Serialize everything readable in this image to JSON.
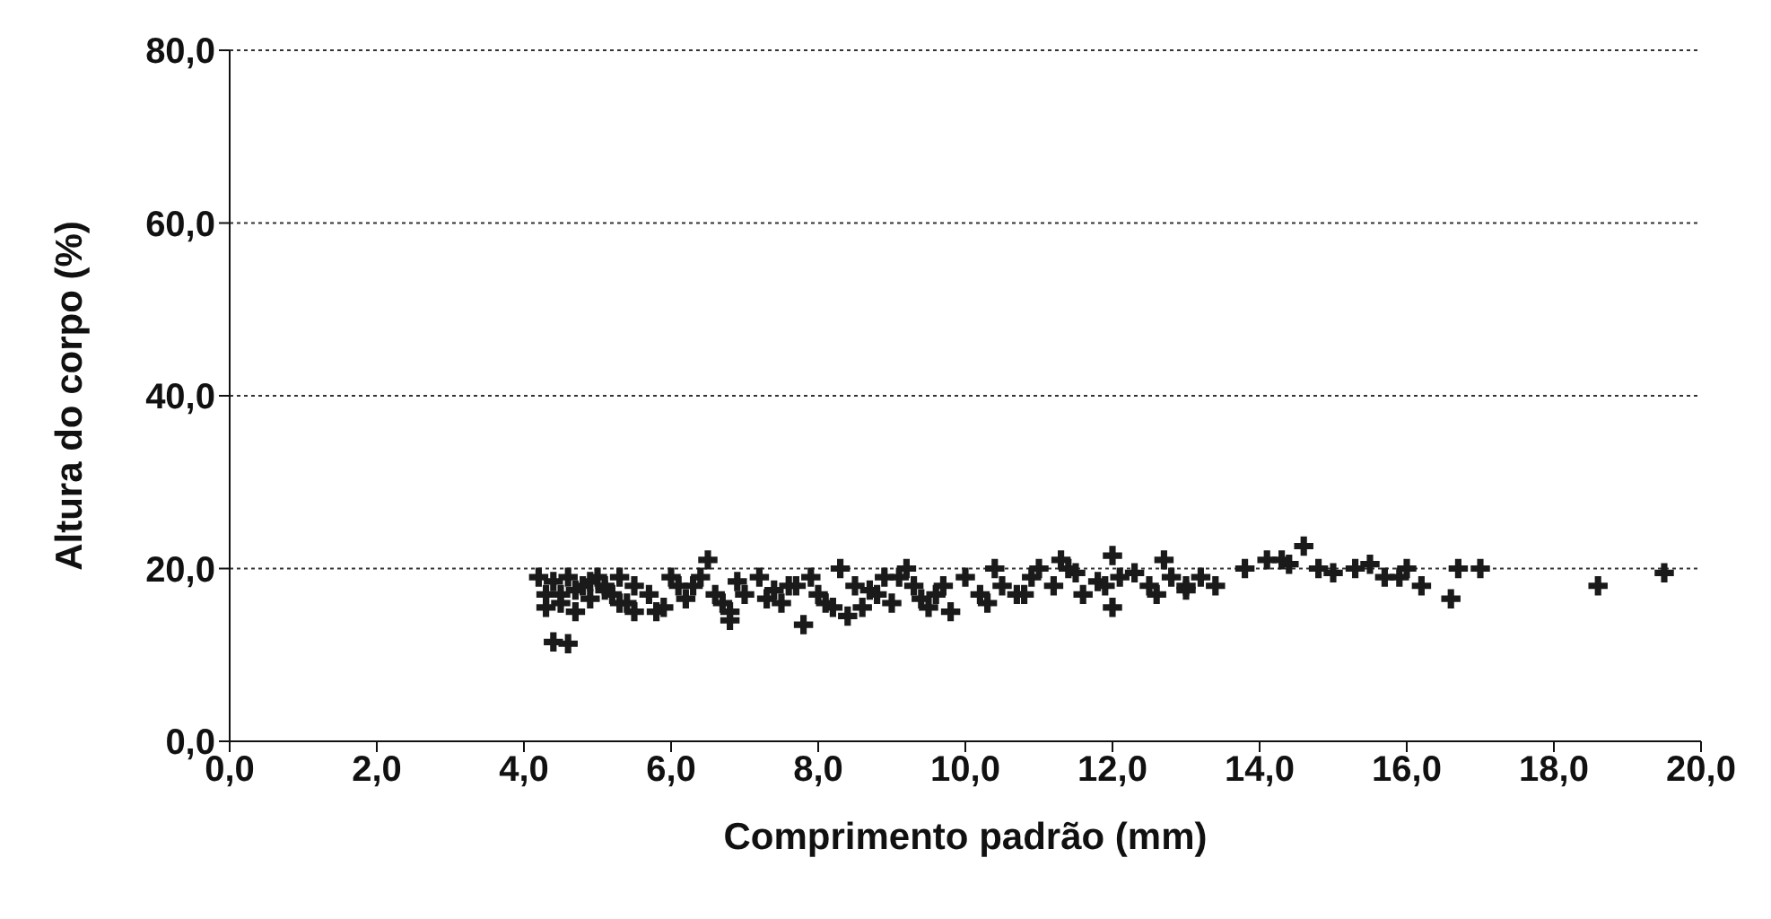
{
  "chart_data": {
    "type": "scatter",
    "xlabel": "Comprimento padrão (mm)",
    "ylabel": "Altura do corpo (%)",
    "xlim": [
      0,
      20
    ],
    "ylim": [
      0,
      80
    ],
    "xticks": [
      {
        "value": 0,
        "label": "0,0"
      },
      {
        "value": 2,
        "label": "2,0"
      },
      {
        "value": 4,
        "label": "4,0"
      },
      {
        "value": 6,
        "label": "6,0"
      },
      {
        "value": 8,
        "label": "8,0"
      },
      {
        "value": 10,
        "label": "10,0"
      },
      {
        "value": 12,
        "label": "12,0"
      },
      {
        "value": 14,
        "label": "14,0"
      },
      {
        "value": 16,
        "label": "16,0"
      },
      {
        "value": 18,
        "label": "18,0"
      },
      {
        "value": 20,
        "label": "20,0"
      }
    ],
    "yticks": [
      {
        "value": 0,
        "label": "0,0"
      },
      {
        "value": 20,
        "label": "20,0"
      },
      {
        "value": 40,
        "label": "40,0"
      },
      {
        "value": 60,
        "label": "60,0"
      },
      {
        "value": 80,
        "label": "80,0"
      }
    ],
    "grid": "y",
    "marker": "cross",
    "series": [
      {
        "color": "#1a1a1a",
        "x": [
          4.2,
          4.3,
          4.4,
          4.5,
          4.6,
          4.7,
          4.8,
          4.9,
          5.0,
          5.1,
          5.2,
          5.3,
          5.4,
          5.5,
          4.3,
          4.5,
          4.7,
          4.9,
          5.1,
          5.3,
          5.5,
          4.4,
          4.6,
          5.7,
          5.8,
          6.0,
          6.2,
          6.3,
          6.5,
          6.6,
          6.8,
          6.9,
          7.0,
          5.9,
          6.1,
          6.4,
          6.7,
          6.8,
          7.2,
          7.4,
          7.5,
          7.6,
          7.8,
          7.9,
          8.0,
          8.2,
          7.3,
          7.7,
          8.1,
          8.3,
          8.5,
          8.6,
          8.8,
          8.9,
          9.0,
          9.2,
          9.3,
          9.5,
          9.6,
          8.4,
          8.7,
          9.1,
          9.4,
          9.7,
          9.8,
          10.0,
          10.2,
          10.4,
          10.5,
          10.7,
          10.9,
          11.0,
          11.2,
          11.3,
          11.5,
          11.6,
          11.8,
          12.0,
          12.1,
          10.3,
          10.8,
          11.4,
          11.9,
          12.0,
          12.3,
          12.5,
          12.7,
          12.8,
          13.0,
          13.2,
          13.4,
          13.0,
          12.6,
          13.8,
          14.1,
          14.4,
          14.6,
          14.3,
          14.8,
          15.0,
          15.3,
          15.5,
          15.7,
          16.0,
          16.2,
          15.9,
          16.6,
          16.7,
          17.0,
          18.6,
          19.5
        ],
        "values": [
          19,
          17,
          18.5,
          16,
          19,
          17.5,
          18,
          16.5,
          19,
          18,
          17,
          19,
          16,
          18,
          15.5,
          17,
          15,
          18.5,
          17.5,
          16,
          15,
          11.5,
          11.3,
          17,
          15,
          19,
          16.5,
          18,
          21,
          17,
          15,
          18.5,
          17,
          15.5,
          18,
          19,
          16,
          14,
          19,
          17.5,
          16,
          18,
          13.5,
          19,
          17,
          15.5,
          16.5,
          18,
          16,
          20,
          18,
          15.5,
          17,
          19,
          16,
          20,
          18,
          15.5,
          17,
          14.5,
          17.5,
          19,
          16.5,
          18,
          15,
          19,
          17,
          20,
          18,
          17,
          19,
          20,
          18,
          21,
          19.5,
          17,
          18.5,
          21.5,
          19,
          16,
          17,
          20,
          18,
          15.5,
          19.5,
          18,
          21,
          19,
          18,
          19,
          18,
          17.5,
          17,
          20,
          21,
          20.5,
          22.6,
          21,
          20,
          19.5,
          20,
          20.5,
          19,
          20,
          18,
          19,
          16.5,
          20,
          20,
          18,
          19.5
        ]
      }
    ]
  }
}
